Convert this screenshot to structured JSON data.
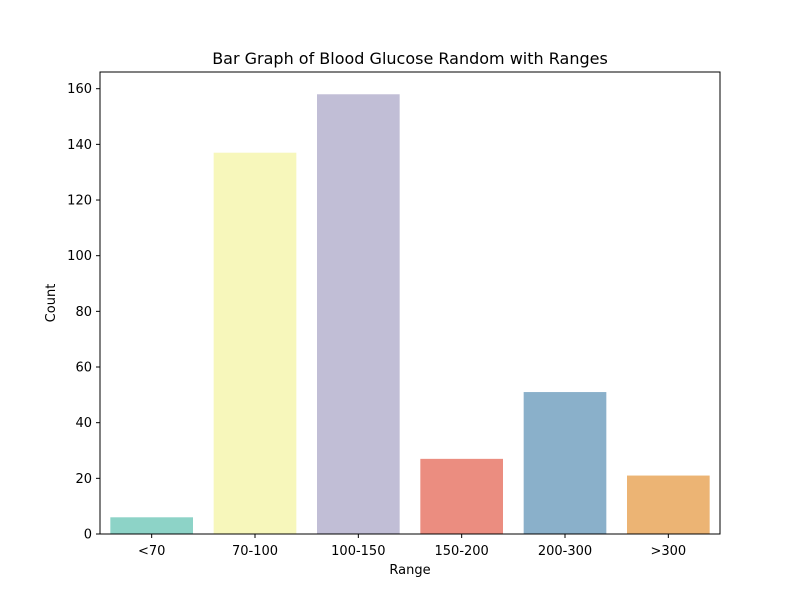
{
  "chart_data": {
    "type": "bar",
    "title": "Bar Graph of Blood Glucose Random with Ranges",
    "xlabel": "Range",
    "ylabel": "Count",
    "categories": [
      "<70",
      "70-100",
      "100-150",
      "150-200",
      "200-300",
      ">300"
    ],
    "values": [
      6,
      137,
      158,
      27,
      51,
      21
    ],
    "colors": [
      "#8dd3c7",
      "#f7f7bb",
      "#c1bed6",
      "#eb8d80",
      "#8ab0ca",
      "#ecb474"
    ],
    "ylim": [
      0,
      166
    ],
    "yticks": [
      0,
      20,
      40,
      60,
      80,
      100,
      120,
      140,
      160
    ],
    "grid": false,
    "legend": false
  }
}
